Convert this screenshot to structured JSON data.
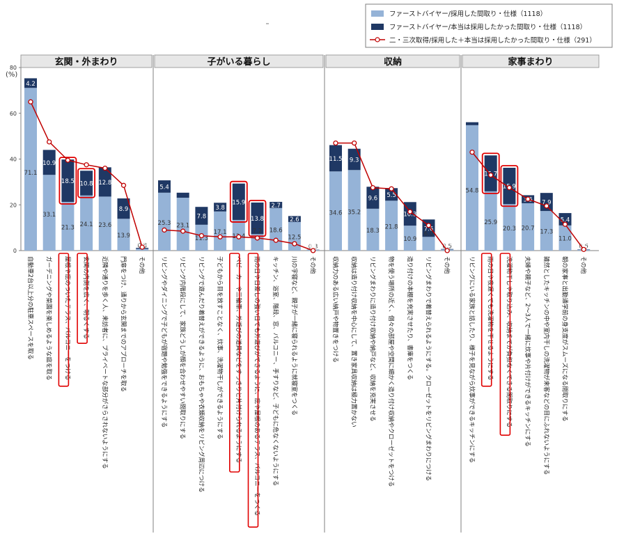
{
  "chart_data": {
    "type": "bar",
    "ylabel": "(%)",
    "yticks": [
      0,
      20,
      40,
      60,
      80
    ],
    "ylim": [
      0,
      80
    ],
    "legend": [
      {
        "name": "ファーストバイヤー/採用した間取り・仕様（1118）",
        "kind": "bar",
        "color": "#95b3d7"
      },
      {
        "name": "ファーストバイヤー/本当は採用したかった間取り・仕様（1118）",
        "kind": "bar",
        "color": "#1f3864"
      },
      {
        "name": "二・三次取得/採用した＋本当は採用したかった間取り・仕様（291）",
        "kind": "line",
        "color": "#c00000"
      }
    ],
    "groups": [
      {
        "title": "玄関・外まわり",
        "items": [
          {
            "label": "自動車2台以上分の駐車スペースを取る",
            "adopted": 71.1,
            "wanted": 4.2,
            "second": 65,
            "hl": false
          },
          {
            "label": "ガーデニングや菜園を楽しめるような庭を取る",
            "adopted": 33.1,
            "wanted": 10.9,
            "second": 47.5,
            "hl": false
          },
          {
            "label": "屋根や庇のついたテラス、バルコニーをつける",
            "adopted": 21.3,
            "wanted": 18.5,
            "second": 39.5,
            "hl": true
          },
          {
            "label": "玄関の内側を広く、明るくする",
            "adopted": 24.1,
            "wanted": 10.8,
            "second": 37.5,
            "hl": true
          },
          {
            "label": "近隣や通りを歩く人、来訪者に、プライベートな部分がさらされないようにする",
            "adopted": 23.6,
            "wanted": 12.8,
            "second": 36,
            "hl": false
          },
          {
            "label": "門扉をつけ、通りから玄関までのアプローチを取る",
            "adopted": 13.9,
            "wanted": 8.9,
            "second": 28.5,
            "hl": false
          },
          {
            "label": "その他",
            "adopted": 0.8,
            "wanted": 0.4,
            "second": 1.5,
            "hl": false
          }
        ]
      },
      {
        "title": "子がいる暮らし",
        "items": [
          {
            "label": "リビングやダイニングで子どもが宿題や勉強をできるようにする",
            "adopted": 25.3,
            "wanted": 5.4,
            "second": 9,
            "hl": false
          },
          {
            "label": "リビング内階段にして、家族どうしが顔を合わせやすい間取りにする",
            "adopted": 23.1,
            "wanted": 2.2,
            "second": 8.5,
            "hl": false
          },
          {
            "label": "リビングで遊んだり着替えができるように、おもちゃや衣類収納をリビング周辺につける",
            "adopted": 11.3,
            "wanted": 7.8,
            "second": 6.5,
            "hl": false
          },
          {
            "label": "子どもから目を放すことなく、炊事、洗濯物干しができるようにする",
            "adopted": 17.1,
            "wanted": 3.8,
            "second": 6,
            "hl": false
          },
          {
            "label": "ベビーカーや三輪車、外遊びの道具などをすっきりと片付けられるようにする",
            "adopted": 13.4,
            "wanted": 15.9,
            "second": 6,
            "hl": true
          },
          {
            "label": "雨の日や日差しの強い日でも外遊びができるように、庇や屋根のあるテラス、バルコニーをつくる",
            "adopted": 7.2,
            "wanted": 13.8,
            "second": 5.5,
            "hl": true
          },
          {
            "label": "キッチン、浴室、階段、窓、バルコニー、手すりなど、子どもに危なくないようにする",
            "adopted": 18.6,
            "wanted": 2.7,
            "second": 4.5,
            "hl": false
          },
          {
            "label": "川の字寝など、親子が一緒に寝られるように就寝室をつくる",
            "adopted": 12.5,
            "wanted": 2.6,
            "second": 3,
            "hl": false
          },
          {
            "label": "その他",
            "adopted": 0.3,
            "wanted": 0.1,
            "second": 0,
            "hl": false
          }
        ]
      },
      {
        "title": "収納",
        "items": [
          {
            "label": "収納力のある広い納戸や物置きをつける",
            "adopted": 34.6,
            "wanted": 11.5,
            "second": 47,
            "hl": false
          },
          {
            "label": "収納は造り付け収納を中心にして、置き家具収納は極力置かない",
            "adopted": 35.2,
            "wanted": 9.3,
            "second": 47,
            "hl": false
          },
          {
            "label": "リビングまわりに造り付け収納や納戸など、収納を充実させる",
            "adopted": 18.3,
            "wanted": 9.6,
            "second": 27.5,
            "hl": false
          },
          {
            "label": "物を使う場所の近く、個々の部屋や空間に細かく造り付け収納やクローゼットをつける",
            "adopted": 21.8,
            "wanted": 5.5,
            "second": 27,
            "hl": false
          },
          {
            "label": "造り付けの本棚を充実させたり、書庫をつくる",
            "adopted": 10.9,
            "wanted": 10.3,
            "second": 17,
            "hl": false
          },
          {
            "label": "リビングまわりで着替えられるようにする。クローゼットをリビングまわりにつける",
            "adopted": 6.0,
            "wanted": 7.6,
            "second": 11,
            "hl": false
          },
          {
            "label": "その他",
            "adopted": 0.5,
            "wanted": 0.2,
            "second": 0,
            "hl": false
          }
        ]
      },
      {
        "title": "家事まわり",
        "items": [
          {
            "label": "リビングにいる家族と話したり、様子を見ながら炊事ができるキッチンにする",
            "adopted": 54.8,
            "wanted": 1.3,
            "second": 43,
            "hl": false
          },
          {
            "label": "雨の日や夜遅くでも洗濯物を干せるようにする",
            "adopted": 25.9,
            "wanted": 15.7,
            "second": 33,
            "hl": true
          },
          {
            "label": "洗濯物干しや取り込み、収納までが負担なくできる間取りにする",
            "adopted": 20.3,
            "wanted": 15.9,
            "second": 27.5,
            "hl": true
          },
          {
            "label": "夫婦や親子など、2～3人で一緒に炊事や片付けができるキッチンにする",
            "adopted": 20.7,
            "wanted": 3.5,
            "second": 22.5,
            "hl": false
          },
          {
            "label": "雑然としたキッチンの中や室内干しの洗濯物が来客などの目にふれないようにする",
            "adopted": 17.3,
            "wanted": 7.9,
            "second": 19.5,
            "hl": false
          },
          {
            "label": "朝の家事と出勤通学前の身支度がスムーズになる間取りにする",
            "adopted": 11.0,
            "wanted": 5.4,
            "second": 11.5,
            "hl": false
          },
          {
            "label": "その他",
            "adopted": 0.5,
            "wanted": 0.1,
            "second": 0.5,
            "hl": false
          }
        ]
      }
    ]
  }
}
